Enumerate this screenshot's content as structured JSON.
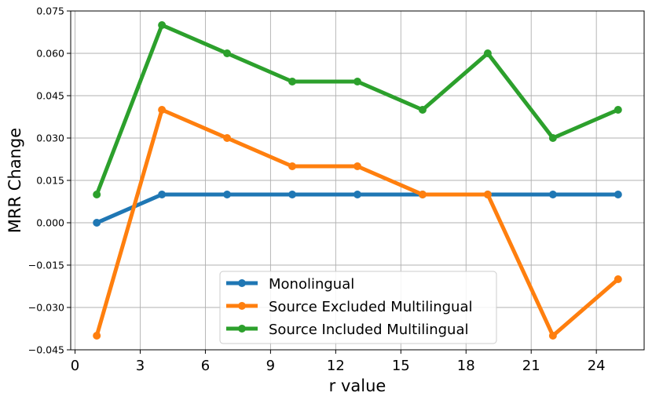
{
  "chart_data": {
    "type": "line",
    "title": "",
    "xlabel": "r value",
    "ylabel": "MRR Change",
    "xlim": [
      -0.2,
      26.2
    ],
    "ylim": [
      -0.045,
      0.075
    ],
    "xticks": [
      0,
      3,
      6,
      9,
      12,
      15,
      18,
      21,
      24
    ],
    "yticks": [
      -0.045,
      -0.03,
      -0.015,
      0.0,
      0.015,
      0.03,
      0.045,
      0.06,
      0.075
    ],
    "ytick_labels": [
      "−0.045",
      "−0.030",
      "−0.015",
      "0.000",
      "0.015",
      "0.030",
      "0.045",
      "0.060",
      "0.075"
    ],
    "grid": true,
    "legend_position": "bottom-center",
    "x": [
      1,
      4,
      7,
      10,
      13,
      16,
      19,
      22,
      25
    ],
    "series": [
      {
        "name": "Monolingual",
        "color": "#1f77b4",
        "values": [
          0.0,
          0.01,
          0.01,
          0.01,
          0.01,
          0.01,
          0.01,
          0.01,
          0.01
        ]
      },
      {
        "name": "Source Excluded Multilingual",
        "color": "#ff7f0e",
        "values": [
          -0.04,
          0.04,
          0.03,
          0.02,
          0.02,
          0.01,
          0.01,
          -0.04,
          -0.02
        ]
      },
      {
        "name": "Source Included Multilingual",
        "color": "#2ca02c",
        "values": [
          0.01,
          0.07,
          0.06,
          0.05,
          0.05,
          0.04,
          0.06,
          0.03,
          0.04
        ]
      }
    ]
  }
}
